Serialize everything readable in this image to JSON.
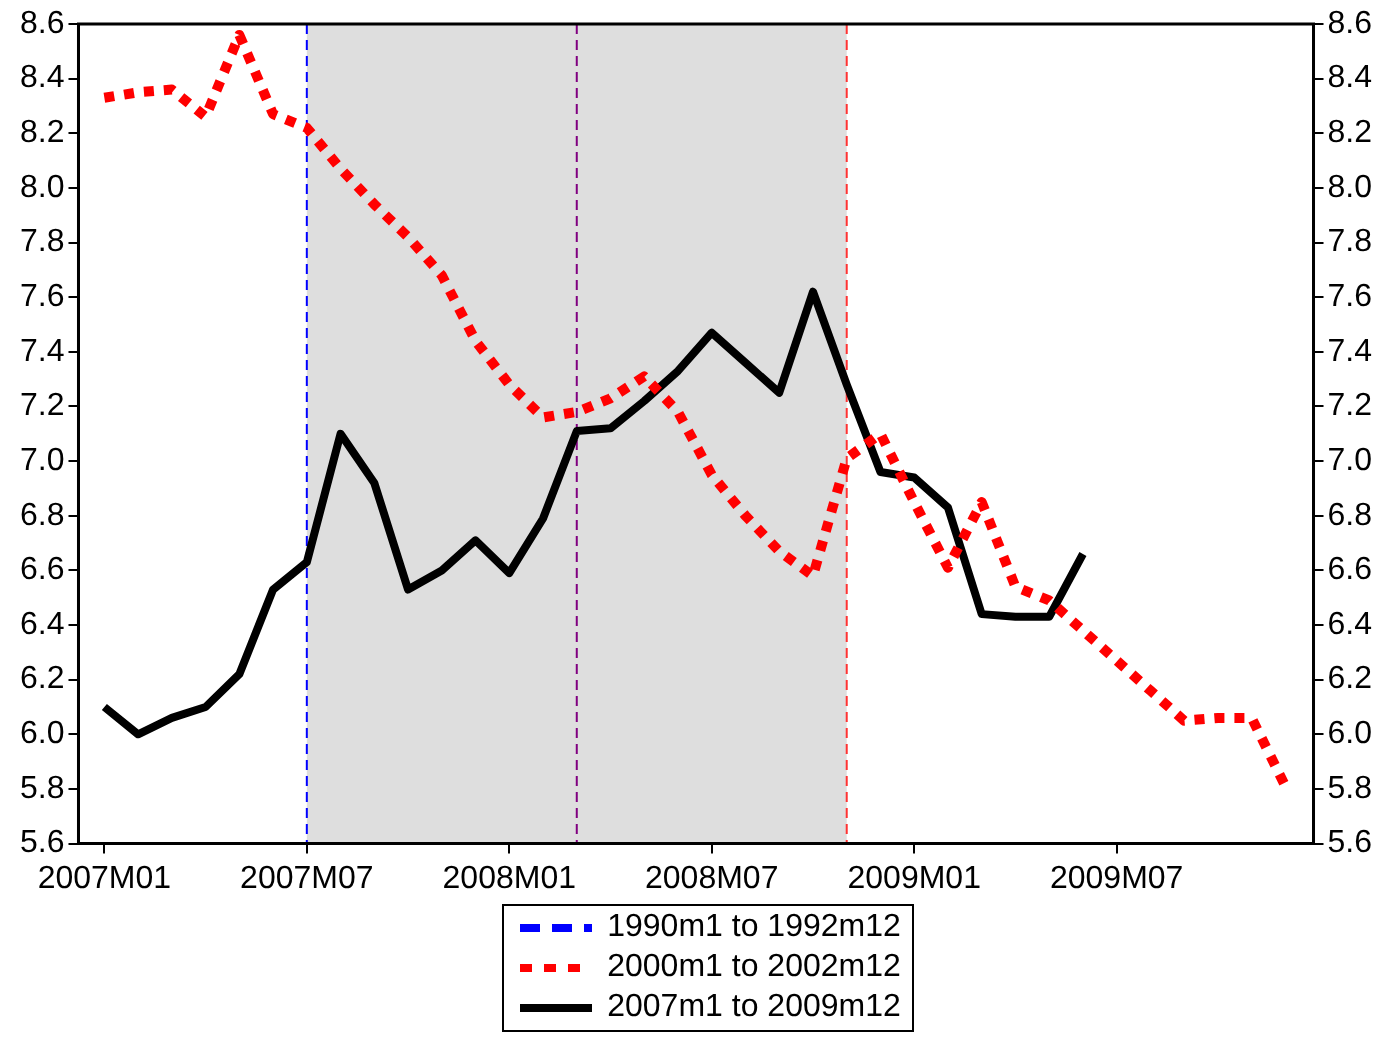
{
  "chart_data": {
    "type": "line",
    "x": [
      "2007-01",
      "2007-02",
      "2007-03",
      "2007-04",
      "2007-05",
      "2007-06",
      "2007-07",
      "2007-08",
      "2007-09",
      "2007-10",
      "2007-11",
      "2007-12",
      "2008-01",
      "2008-02",
      "2008-03",
      "2008-04",
      "2008-05",
      "2008-06",
      "2008-07",
      "2008-08",
      "2008-09",
      "2008-10",
      "2008-11",
      "2008-12",
      "2009-01",
      "2009-02",
      "2009-03",
      "2009-04",
      "2009-05",
      "2009-06",
      "2009-07",
      "2009-08",
      "2009-09",
      "2009-10",
      "2009-11",
      "2009-12"
    ],
    "series": [
      {
        "name": "1990m1 to 1992m12",
        "color": "#0000ff",
        "line_style": "dashed",
        "values": [
          null,
          null,
          null,
          null,
          null,
          null,
          null,
          null,
          null,
          null,
          null,
          null,
          null,
          null,
          null,
          null,
          null,
          null,
          null,
          null,
          null,
          null,
          null,
          null,
          null,
          null,
          null,
          null,
          null,
          null,
          null,
          null,
          null,
          null,
          null,
          null
        ]
      },
      {
        "name": "2000m1 to 2002m12",
        "color": "#ff0000",
        "line_style": "dotted",
        "values": [
          8.33,
          8.35,
          8.36,
          8.26,
          8.56,
          8.27,
          8.22,
          8.07,
          7.94,
          7.82,
          7.68,
          7.44,
          7.28,
          7.16,
          7.18,
          7.23,
          7.31,
          7.18,
          6.95,
          6.8,
          6.67,
          6.58,
          7.01,
          7.1,
          6.85,
          6.61,
          6.85,
          6.54,
          6.49,
          6.38,
          6.27,
          6.16,
          6.05,
          6.06,
          6.06,
          5.81
        ]
      },
      {
        "name": "2007m1 to 2009m12",
        "color": "#000000",
        "line_style": "solid",
        "values": [
          6.1,
          6.0,
          6.06,
          6.1,
          6.22,
          6.53,
          6.63,
          7.1,
          6.92,
          6.53,
          6.6,
          6.71,
          6.59,
          6.79,
          7.11,
          7.12,
          7.22,
          7.33,
          7.47,
          7.36,
          7.25,
          7.62,
          7.28,
          6.96,
          6.94,
          6.83,
          6.44,
          6.43,
          6.43,
          6.66,
          null,
          null,
          null,
          null,
          null,
          null
        ]
      }
    ],
    "xlim": [
      "2006-12-08",
      "2009-12-26"
    ],
    "xticks": [
      {
        "value": "2007-01",
        "label": "2007M01"
      },
      {
        "value": "2007-07",
        "label": "2007M07"
      },
      {
        "value": "2008-01",
        "label": "2008M01"
      },
      {
        "value": "2008-07",
        "label": "2008M07"
      },
      {
        "value": "2009-01",
        "label": "2009M01"
      },
      {
        "value": "2009-07",
        "label": "2009M07"
      }
    ],
    "ylim": [
      5.6,
      8.6
    ],
    "yticks": [
      {
        "value": 5.6,
        "label": "5.6"
      },
      {
        "value": 5.8,
        "label": "5.8"
      },
      {
        "value": 6.0,
        "label": "6.0"
      },
      {
        "value": 6.2,
        "label": "6.2"
      },
      {
        "value": 6.4,
        "label": "6.4"
      },
      {
        "value": 6.6,
        "label": "6.6"
      },
      {
        "value": 6.8,
        "label": "6.8"
      },
      {
        "value": 7.0,
        "label": "7.0"
      },
      {
        "value": 7.2,
        "label": "7.2"
      },
      {
        "value": 7.4,
        "label": "7.4"
      },
      {
        "value": 7.6,
        "label": "7.6"
      },
      {
        "value": 7.8,
        "label": "7.8"
      },
      {
        "value": 8.0,
        "label": "8.0"
      },
      {
        "value": 8.2,
        "label": "8.2"
      },
      {
        "value": 8.4,
        "label": "8.4"
      },
      {
        "value": 8.6,
        "label": "8.6"
      }
    ],
    "y2lim": [
      5.6,
      8.6
    ],
    "y2ticks": [
      {
        "value": 5.6,
        "label": "5.6"
      },
      {
        "value": 5.8,
        "label": "5.8"
      },
      {
        "value": 6.0,
        "label": "6.0"
      },
      {
        "value": 6.2,
        "label": "6.2"
      },
      {
        "value": 6.4,
        "label": "6.4"
      },
      {
        "value": 6.6,
        "label": "6.6"
      },
      {
        "value": 6.8,
        "label": "6.8"
      },
      {
        "value": 7.0,
        "label": "7.0"
      },
      {
        "value": 7.2,
        "label": "7.2"
      },
      {
        "value": 7.4,
        "label": "7.4"
      },
      {
        "value": 7.6,
        "label": "7.6"
      },
      {
        "value": 7.8,
        "label": "7.8"
      },
      {
        "value": 8.0,
        "label": "8.0"
      },
      {
        "value": 8.2,
        "label": "8.2"
      },
      {
        "value": 8.4,
        "label": "8.4"
      },
      {
        "value": 8.6,
        "label": "8.6"
      }
    ],
    "bands": [
      {
        "axis": "x",
        "from": "2007-07",
        "to": "2008-11",
        "color": "#dedede"
      }
    ],
    "ref_lines": [
      {
        "axis": "x",
        "value": "2007-07",
        "color": "#0000ff",
        "line_style": "dashed"
      },
      {
        "axis": "x",
        "value": "2008-03",
        "color": "#800080",
        "line_style": "dashed"
      },
      {
        "axis": "x",
        "value": "2008-11",
        "color": "#ff3333",
        "line_style": "dashed"
      }
    ],
    "grid": false,
    "marker": "none",
    "legend": "bottom"
  }
}
